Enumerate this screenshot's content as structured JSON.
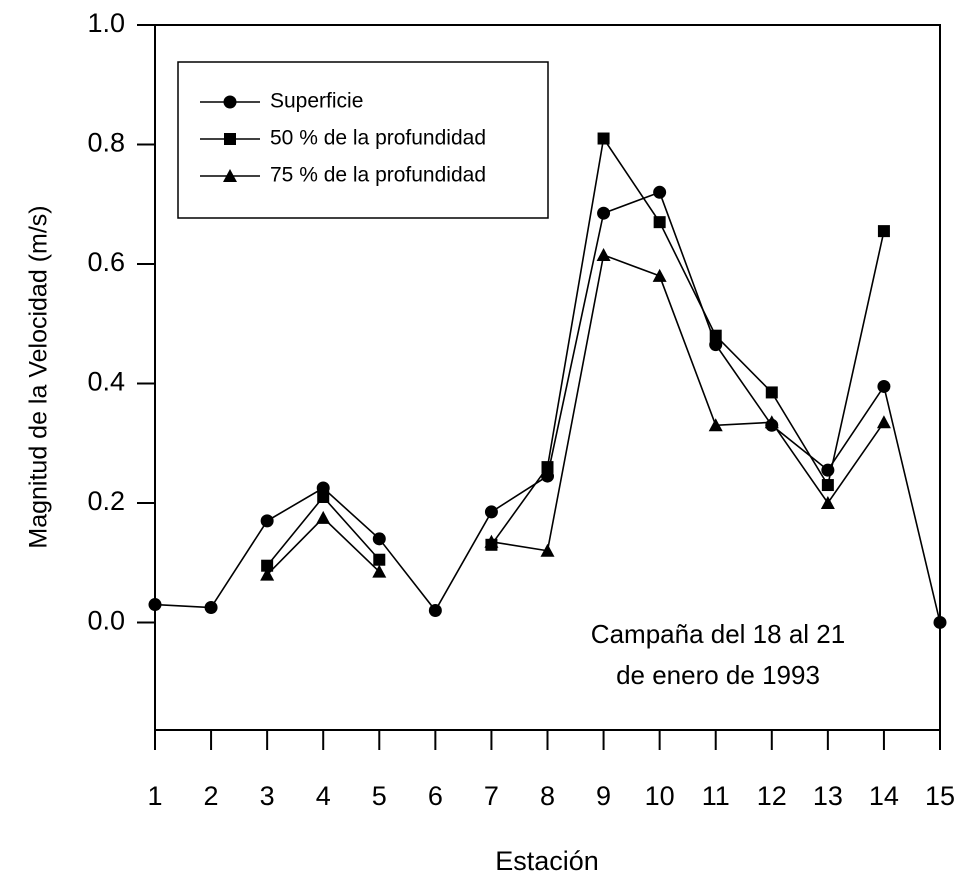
{
  "chart_data": {
    "type": "line",
    "xlabel": "Estación",
    "ylabel": "Magnitud de la Velocidad (m/s)",
    "annotation": [
      "Campaña del 18 al 21",
      "de enero de 1993"
    ],
    "x": [
      1,
      2,
      3,
      4,
      5,
      6,
      7,
      8,
      9,
      10,
      11,
      12,
      13,
      14,
      15
    ],
    "xlim": [
      1,
      15
    ],
    "xticks": [
      1,
      2,
      3,
      4,
      5,
      6,
      7,
      8,
      9,
      10,
      11,
      12,
      13,
      14,
      15
    ],
    "ylim": [
      -0.18,
      1.0
    ],
    "yticks": [
      {
        "value": 0,
        "label": "0.0"
      },
      0.2,
      0.4,
      0.6,
      0.8,
      {
        "value": 1,
        "label": "1.0"
      }
    ],
    "legend": "upper left",
    "grid": false,
    "series": [
      {
        "name": "Superficie",
        "color": "#000000",
        "marker": "circle",
        "values": [
          0.03,
          0.025,
          0.17,
          0.225,
          0.14,
          0.02,
          0.185,
          0.245,
          0.685,
          0.72,
          0.465,
          0.33,
          0.255,
          0.395,
          0.0
        ]
      },
      {
        "name": "50 % de la profundidad",
        "color": "#000000",
        "marker": "square",
        "values": [
          null,
          null,
          0.095,
          0.21,
          0.105,
          null,
          0.13,
          0.26,
          0.81,
          0.67,
          0.48,
          0.385,
          0.23,
          0.655,
          null
        ]
      },
      {
        "name": "75 % de la profundidad",
        "color": "#000000",
        "marker": "triangle",
        "values": [
          null,
          null,
          0.08,
          0.175,
          0.085,
          null,
          0.135,
          0.12,
          0.615,
          0.58,
          0.33,
          0.335,
          0.2,
          0.335,
          null
        ]
      }
    ]
  }
}
